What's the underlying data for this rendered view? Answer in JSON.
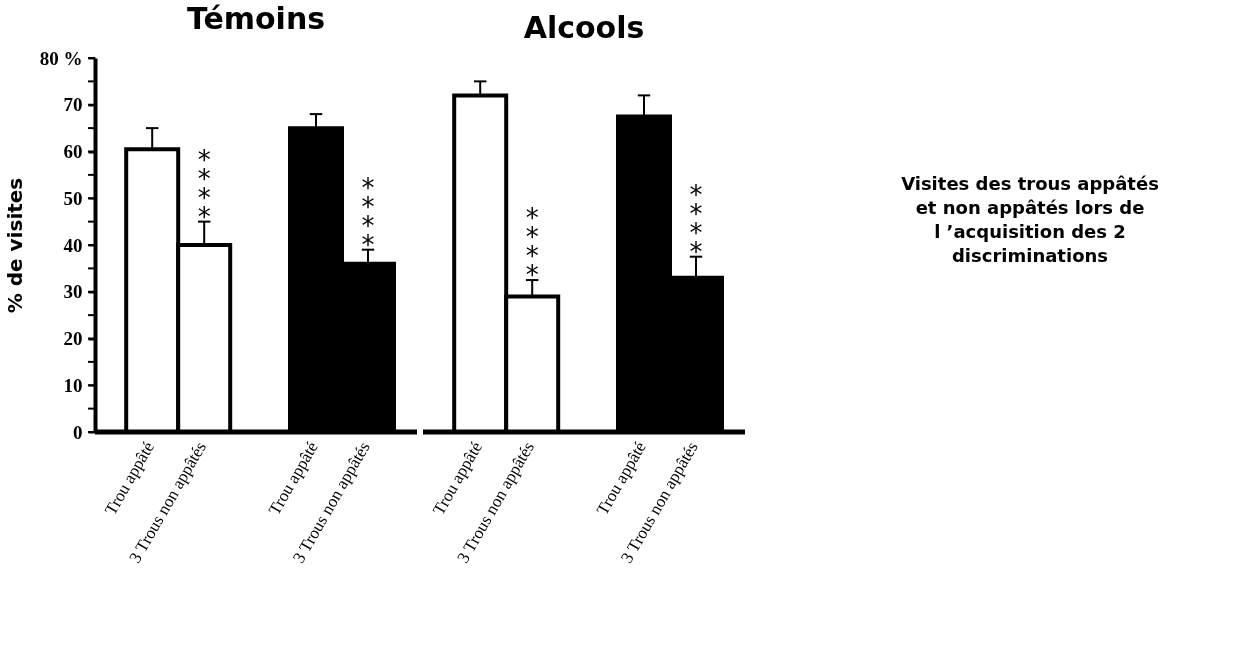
{
  "chart_data": [
    {
      "type": "bar",
      "title": "Témoins",
      "ylabel": "% de visites",
      "categories": [
        "Trou appâté",
        "3 Trous non appâtés",
        "Trou appâté",
        "3 Trous non appâtés"
      ],
      "values": [
        60.5,
        40,
        65,
        36
      ],
      "colors": [
        "#ffffff",
        "#ffffff",
        "#000000",
        "#000000"
      ],
      "errors": [
        [
          60.5,
          65
        ],
        [
          40,
          45
        ],
        [
          65,
          68
        ],
        [
          36,
          39
        ]
      ],
      "ylim": [
        0,
        80
      ],
      "yticks": [
        0,
        {
          "value": 5,
          "label": null
        },
        10,
        {
          "value": 15,
          "label": null
        },
        20,
        {
          "value": 25,
          "label": null
        },
        30,
        {
          "value": 35,
          "label": null
        },
        40,
        {
          "value": 45,
          "label": null
        },
        50,
        {
          "value": 55,
          "label": null
        },
        60,
        {
          "value": 65,
          "label": null
        },
        70,
        {
          "value": 75,
          "label": null
        },
        {
          "value": 80,
          "label": "80 %"
        }
      ],
      "value_labels": [
        null,
        "****",
        null,
        "****"
      ]
    },
    {
      "type": "bar",
      "title": "Alcools",
      "categories": [
        "Trou appâté",
        "3 Trous non appâtés",
        "Trou appâté",
        "3 Trous non appâtés"
      ],
      "values": [
        72,
        29,
        67.5,
        33
      ],
      "colors": [
        "#ffffff",
        "#ffffff",
        "#000000",
        "#000000"
      ],
      "errors": [
        [
          72,
          75
        ],
        [
          29,
          32.5
        ],
        [
          67.5,
          72
        ],
        [
          33,
          37.5
        ]
      ],
      "ylim": [
        0,
        80
      ],
      "tick_labels": "x",
      "value_labels": [
        null,
        "****",
        null,
        "****"
      ],
      "annotations": [
        "Visites des trous appâtés\net non appâtés lors de\nl ’acquisition des 2\ndiscriminations"
      ]
    }
  ]
}
